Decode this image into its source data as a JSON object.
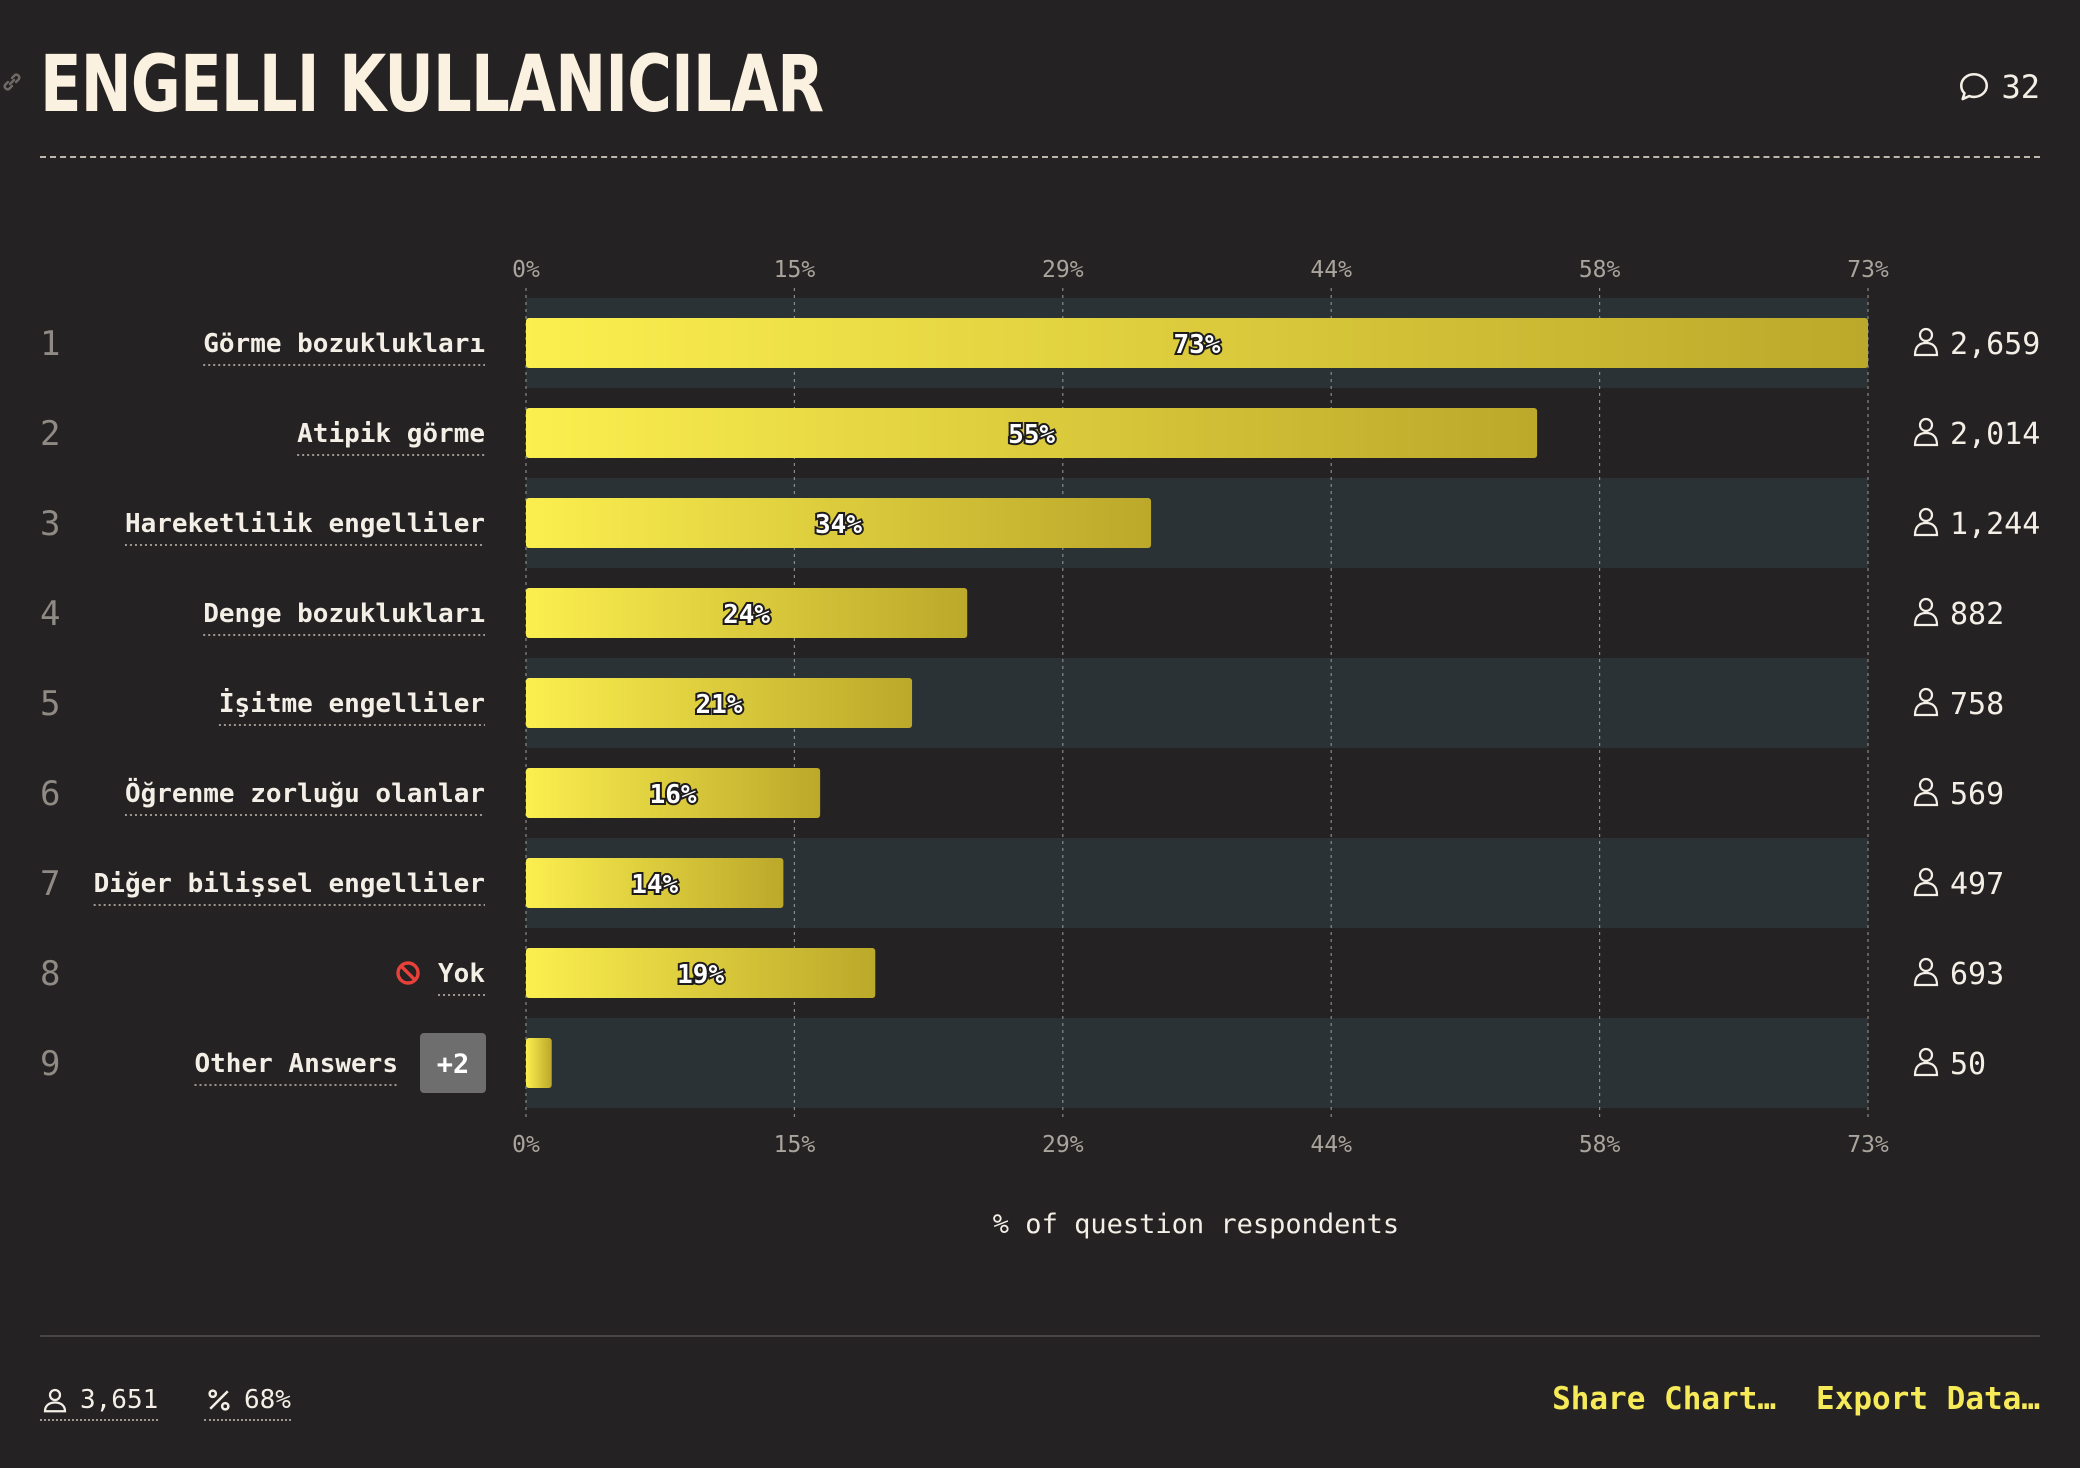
{
  "header": {
    "title": "ENGELLI KULLANICILAR",
    "comment_count": "32"
  },
  "colors": {
    "background": "#252223",
    "row_band": "#2b3236",
    "bar_start": "#fbef4f",
    "bar_end": "#bca82a",
    "grid": "#8a8a86",
    "badge": "#6e6e6e",
    "accent": "#f7ea58"
  },
  "chart_data": {
    "type": "bar",
    "orientation": "horizontal",
    "xlabel": "% of question respondents",
    "x_ticks": [
      "0%",
      "15%",
      "29%",
      "44%",
      "58%",
      "73%"
    ],
    "xlim": [
      0,
      73
    ],
    "grid": true,
    "rows": [
      {
        "rank": "1",
        "label": "Görme bozuklukları",
        "value": 73,
        "value_label": "73%",
        "count": "2,659"
      },
      {
        "rank": "2",
        "label": "Atipik görme",
        "value": 55,
        "value_label": "55%",
        "count": "2,014"
      },
      {
        "rank": "3",
        "label": "Hareketlilik engelliler",
        "value": 34,
        "value_label": "34%",
        "count": "1,244"
      },
      {
        "rank": "4",
        "label": "Denge bozuklukları",
        "value": 24,
        "value_label": "24%",
        "count": "882"
      },
      {
        "rank": "5",
        "label": "İşitme engelliler",
        "value": 21,
        "value_label": "21%",
        "count": "758"
      },
      {
        "rank": "6",
        "label": "Öğrenme zorluğu olanlar",
        "value": 16,
        "value_label": "16%",
        "count": "569"
      },
      {
        "rank": "7",
        "label": "Diğer bilişsel engelliler",
        "value": 14,
        "value_label": "14%",
        "count": "497"
      },
      {
        "rank": "8",
        "label": "Yok",
        "icon": "no-entry-icon",
        "value": 19,
        "value_label": "19%",
        "count": "693"
      },
      {
        "rank": "9",
        "label": "Other Answers",
        "badge": "+2",
        "value": 1.4,
        "value_label": "",
        "count": "50"
      }
    ]
  },
  "footer": {
    "respondents": "3,651",
    "percent": "68%",
    "share_label": "Share Chart…",
    "export_label": "Export Data…"
  }
}
